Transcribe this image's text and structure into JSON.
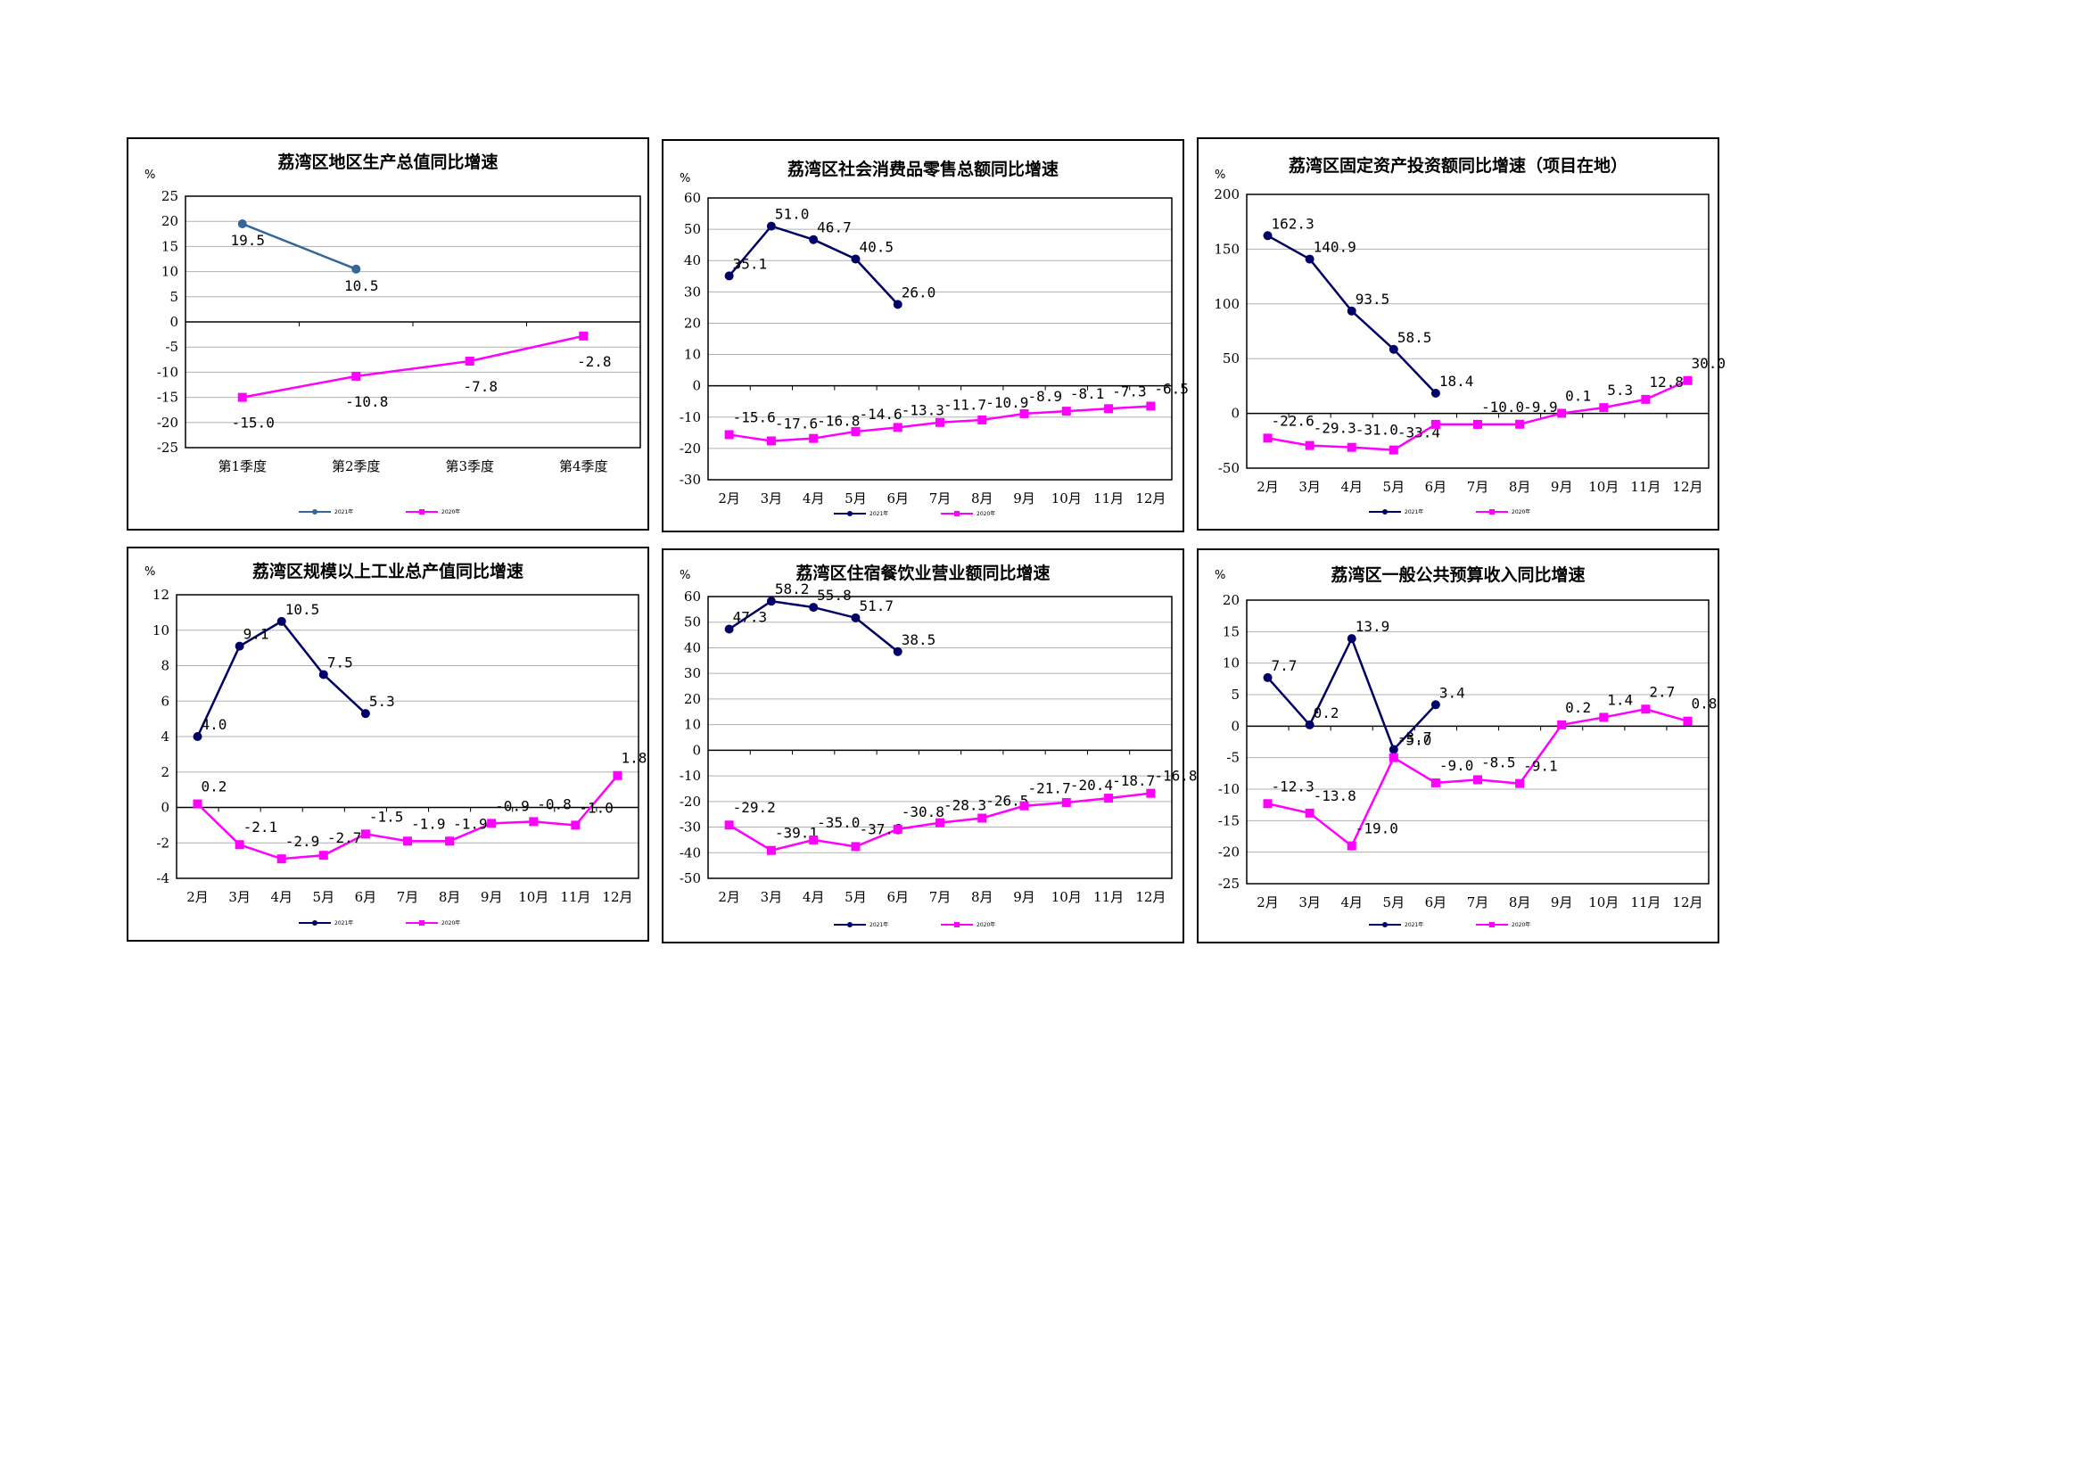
{
  "colors": {
    "series2021": "#000066",
    "series2020": "#ff00ff",
    "grid": "#b0b0b0",
    "gdp2021": "#336699"
  },
  "chart_data": [
    {
      "type": "line",
      "title": "荔湾区地区生产总值同比增速",
      "ylabel": "%",
      "categories": [
        "第1季度",
        "第2季度",
        "第3季度",
        "第4季度"
      ],
      "ylim": [
        -25,
        25
      ],
      "yticks": [
        -25,
        -20,
        -15,
        -10,
        -5,
        0,
        5,
        10,
        15,
        20,
        25
      ],
      "series": [
        {
          "name": "2021年",
          "values": [
            19.5,
            10.5,
            null,
            null
          ],
          "labels": [
            "19.5",
            "10.5",
            "",
            ""
          ],
          "color": "#336699",
          "marker": "circle"
        },
        {
          "name": "2020年",
          "values": [
            -15.0,
            -10.8,
            -7.8,
            -2.8
          ],
          "labels": [
            "-15.0",
            "-10.8",
            "-7.8",
            "-2.8"
          ],
          "color": "#ff00ff",
          "marker": "square"
        }
      ]
    },
    {
      "type": "line",
      "title": "荔湾区社会消费品零售总额同比增速",
      "ylabel": "%",
      "categories": [
        "2月",
        "3月",
        "4月",
        "5月",
        "6月",
        "7月",
        "8月",
        "9月",
        "10月",
        "11月",
        "12月"
      ],
      "ylim": [
        -30,
        60
      ],
      "yticks": [
        -30,
        -20,
        -10,
        0,
        10,
        20,
        30,
        40,
        50,
        60
      ],
      "series": [
        {
          "name": "2021年",
          "values": [
            35.1,
            51.0,
            46.7,
            40.5,
            26.0,
            null,
            null,
            null,
            null,
            null,
            null
          ],
          "labels": [
            "35.1",
            "51.0",
            "46.7",
            "40.5",
            "26.0",
            "",
            "",
            "",
            "",
            "",
            ""
          ],
          "color": "#000066",
          "marker": "circle"
        },
        {
          "name": "2020年",
          "values": [
            -15.6,
            -17.6,
            -16.8,
            -14.6,
            -13.3,
            -11.7,
            -10.9,
            -8.9,
            -8.1,
            -7.3,
            -6.5
          ],
          "labels": [
            "-15.6",
            "-17.6",
            "-16.8",
            "-14.6",
            "-13.3",
            "-11.7",
            "-10.9",
            "-8.9",
            "-8.1",
            "-7.3",
            "-6.5"
          ],
          "color": "#ff00ff",
          "marker": "square"
        }
      ]
    },
    {
      "type": "line",
      "title": "荔湾区固定资产投资额同比增速（项目在地）",
      "ylabel": "%",
      "categories": [
        "2月",
        "3月",
        "4月",
        "5月",
        "6月",
        "7月",
        "8月",
        "9月",
        "10月",
        "11月",
        "12月"
      ],
      "ylim": [
        -50,
        200
      ],
      "yticks": [
        -50,
        0,
        50,
        100,
        150,
        200
      ],
      "series": [
        {
          "name": "2021年",
          "values": [
            162.3,
            140.9,
            93.5,
            58.5,
            18.4,
            null,
            null,
            null,
            null,
            null,
            null
          ],
          "labels": [
            "162.3",
            "140.9",
            "93.5",
            "58.5",
            "18.4",
            "",
            "",
            "",
            "",
            "",
            ""
          ],
          "color": "#000066",
          "marker": "circle"
        },
        {
          "name": "2020年",
          "values": [
            -22.6,
            -29.3,
            -31.0,
            -33.4,
            -10.0,
            -10.0,
            -9.9,
            0.1,
            5.3,
            12.8,
            30.0
          ],
          "labels": [
            "-22.6",
            "-29.3",
            "-31.0",
            "-33.4",
            "",
            "-10.0",
            "-9.9",
            "0.1",
            "5.3",
            "12.8",
            "30.0"
          ],
          "color": "#ff00ff",
          "marker": "square"
        }
      ]
    },
    {
      "type": "line",
      "title": "荔湾区规模以上工业总产值同比增速",
      "ylabel": "%",
      "categories": [
        "2月",
        "3月",
        "4月",
        "5月",
        "6月",
        "7月",
        "8月",
        "9月",
        "10月",
        "11月",
        "12月"
      ],
      "ylim": [
        -4,
        12
      ],
      "yticks": [
        -4,
        -2,
        0,
        2,
        4,
        6,
        8,
        10,
        12
      ],
      "series": [
        {
          "name": "2021年",
          "values": [
            4.0,
            9.1,
            10.5,
            7.5,
            5.3,
            null,
            null,
            null,
            null,
            null,
            null
          ],
          "labels": [
            "4.0",
            "9.1",
            "10.5",
            "7.5",
            "5.3",
            "",
            "",
            "",
            "",
            "",
            ""
          ],
          "color": "#000066",
          "marker": "circle"
        },
        {
          "name": "2020年",
          "values": [
            0.2,
            -2.1,
            -2.9,
            -2.7,
            -1.5,
            -1.9,
            -1.9,
            -0.9,
            -0.8,
            -1.0,
            1.8
          ],
          "labels": [
            "0.2",
            "-2.1",
            "-2.9",
            "-2.7",
            "-1.5",
            "-1.9",
            "-1.9",
            "-0.9",
            "-0.8",
            "-1.0",
            "1.8"
          ],
          "color": "#ff00ff",
          "marker": "square"
        }
      ]
    },
    {
      "type": "line",
      "title": "荔湾区住宿餐饮业营业额同比增速",
      "ylabel": "%",
      "categories": [
        "2月",
        "3月",
        "4月",
        "5月",
        "6月",
        "7月",
        "8月",
        "9月",
        "10月",
        "11月",
        "12月"
      ],
      "ylim": [
        -50,
        60
      ],
      "yticks": [
        -50,
        -40,
        -30,
        -20,
        -10,
        0,
        10,
        20,
        30,
        40,
        50,
        60
      ],
      "series": [
        {
          "name": "2021年",
          "values": [
            47.3,
            58.2,
            55.8,
            51.7,
            38.5,
            null,
            null,
            null,
            null,
            null,
            null
          ],
          "labels": [
            "47.3",
            "58.2",
            "55.8",
            "51.7",
            "38.5",
            "",
            "",
            "",
            "",
            "",
            ""
          ],
          "color": "#000066",
          "marker": "circle"
        },
        {
          "name": "2020年",
          "values": [
            -29.2,
            -39.1,
            -35.0,
            -37.6,
            -30.8,
            -28.3,
            -26.5,
            -21.7,
            -20.4,
            -18.7,
            -16.8
          ],
          "labels": [
            "-29.2",
            "-39.1",
            "-35.0",
            "-37.6",
            "-30.8",
            "-28.3",
            "-26.5",
            "-21.7",
            "-20.4",
            "-18.7",
            "-16.8"
          ],
          "color": "#ff00ff",
          "marker": "square"
        }
      ]
    },
    {
      "type": "line",
      "title": "荔湾区一般公共预算收入同比增速",
      "ylabel": "%",
      "categories": [
        "2月",
        "3月",
        "4月",
        "5月",
        "6月",
        "7月",
        "8月",
        "9月",
        "10月",
        "11月",
        "12月"
      ],
      "ylim": [
        -25,
        20
      ],
      "yticks": [
        -25,
        -20,
        -15,
        -10,
        -5,
        0,
        5,
        10,
        15,
        20
      ],
      "series": [
        {
          "name": "2021年",
          "values": [
            7.7,
            0.2,
            13.9,
            -3.7,
            3.4,
            null,
            null,
            null,
            null,
            null,
            null
          ],
          "labels": [
            "7.7",
            "0.2",
            "13.9",
            "-3.7",
            "3.4",
            "",
            "",
            "",
            "",
            "",
            ""
          ],
          "color": "#000066",
          "marker": "circle"
        },
        {
          "name": "2020年",
          "values": [
            -12.3,
            -13.8,
            -19.0,
            -5.0,
            -9.0,
            -8.5,
            -9.1,
            0.2,
            1.4,
            2.7,
            0.8
          ],
          "labels": [
            "-12.3",
            "-13.8",
            "-19.0",
            "-5.0",
            "-9.0",
            "-8.5",
            "-9.1",
            "0.2",
            "1.4",
            "2.7",
            "0.8"
          ],
          "color": "#ff00ff",
          "marker": "square"
        }
      ]
    }
  ]
}
